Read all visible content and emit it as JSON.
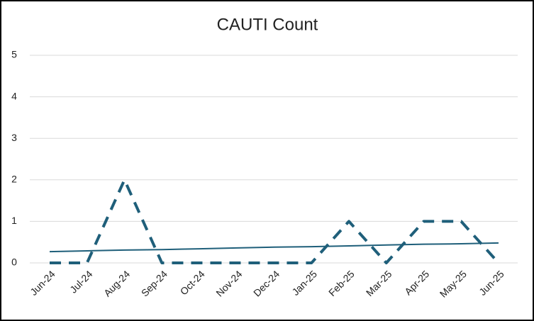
{
  "chart_data": {
    "type": "line",
    "title": "CAUTI Count",
    "categories": [
      "Jun-24",
      "Jul-24",
      "Aug-24",
      "Sep-24",
      "Oct-24",
      "Nov-24",
      "Dec-24",
      "Jan-25",
      "Feb-25",
      "Mar-25",
      "Apr-25",
      "May-25",
      "Jun-25"
    ],
    "series": [
      {
        "color": "#1f5f7a",
        "dashed": true,
        "values": [
          0,
          0,
          2,
          0,
          0,
          0,
          0,
          0,
          1,
          0,
          1,
          1,
          0
        ]
      },
      {
        "color": "#1f5f7a",
        "dashed": false,
        "values": [
          0.27,
          0.29,
          0.31,
          0.32,
          0.34,
          0.36,
          0.38,
          0.39,
          0.41,
          0.43,
          0.45,
          0.46,
          0.48
        ]
      }
    ],
    "ylim": [
      0,
      5
    ],
    "yticks": [
      0,
      1,
      2,
      3,
      4,
      5
    ],
    "grid": true
  }
}
